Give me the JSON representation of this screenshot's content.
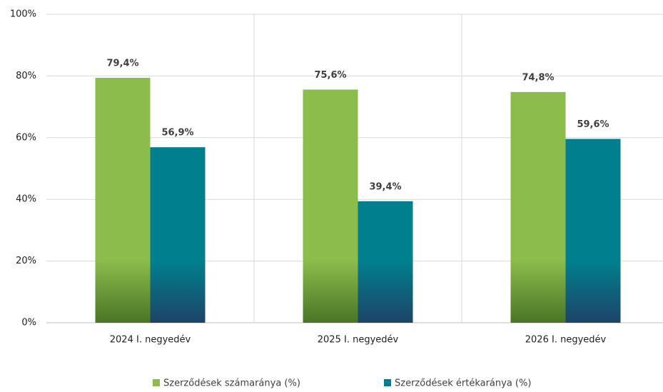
{
  "chart_data": {
    "type": "bar",
    "categories": [
      "2024 I. negyedév",
      "2025 I. negyedév",
      "2026 I. negyedév"
    ],
    "series": [
      {
        "name": "Szerződések számaránya (%)",
        "color": "#8cbc4b",
        "values": [
          79.4,
          75.6,
          74.8
        ],
        "value_labels": [
          "79,4%",
          "75,6%",
          "74,8%"
        ]
      },
      {
        "name": "Szerződések értékaránya (%)",
        "color": "#00808f",
        "values": [
          56.9,
          39.4,
          59.6
        ],
        "value_labels": [
          "56,9%",
          "39,4%",
          "59,6%"
        ]
      }
    ],
    "ylim": [
      0,
      100
    ],
    "yticks": [
      {
        "value": 0,
        "label": "0%"
      },
      {
        "value": 20,
        "label": "20%"
      },
      {
        "value": 40,
        "label": "40%"
      },
      {
        "value": 60,
        "label": "60%"
      },
      {
        "value": 80,
        "label": "80%"
      },
      {
        "value": 100,
        "label": "100%"
      }
    ],
    "grid": true,
    "legend": "bottom"
  }
}
